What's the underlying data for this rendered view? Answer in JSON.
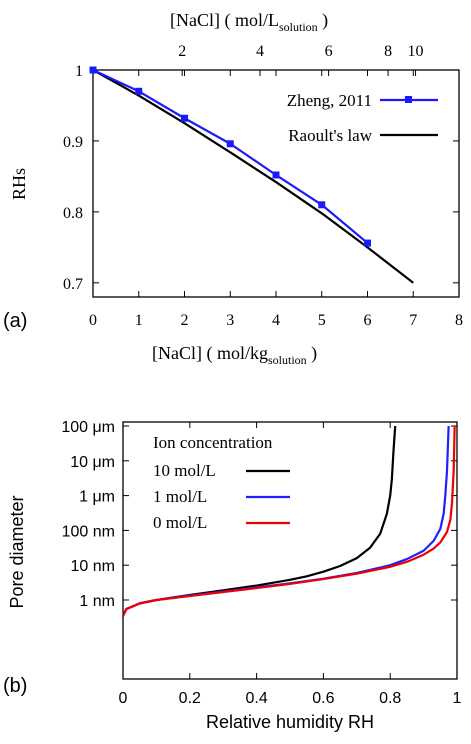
{
  "chart_data": [
    {
      "type": "line",
      "panel_label": "(a)",
      "xlabel": "[NaCl]   ( mol/kg",
      "xlabel_sub": "solution",
      "xlabel_end": " )",
      "x2label": "[NaCl]  ( mol/L",
      "x2label_sub": "solution",
      "x2label_end": " )",
      "ylabel": "RHs",
      "xlim": [
        0,
        8
      ],
      "ylim": [
        0.68,
        1.0
      ],
      "xticks": [
        "0",
        "1",
        "2",
        "3",
        "4",
        "5",
        "6",
        "7",
        "8"
      ],
      "yticks": [
        "0.7",
        "0.8",
        "0.9",
        "1"
      ],
      "x2ticks": [
        {
          "label": "2",
          "x": 1.95
        },
        {
          "label": "4",
          "x": 3.65
        },
        {
          "label": "6",
          "x": 5.15
        },
        {
          "label": "8",
          "x": 6.45
        },
        {
          "label": "10",
          "x": 7.05
        }
      ],
      "legend_position": "top-right",
      "series": [
        {
          "name": "Zheng, 2011",
          "color": "#1a1aff",
          "marker": "square",
          "x": [
            0,
            1,
            2,
            3,
            4,
            5,
            6
          ],
          "y": [
            1.0,
            0.97,
            0.932,
            0.896,
            0.852,
            0.81,
            0.756
          ]
        },
        {
          "name": "Raoult's law",
          "color": "#000000",
          "marker": "none",
          "x": [
            0,
            1,
            2,
            3,
            4,
            5,
            6,
            7
          ],
          "y": [
            1.0,
            0.964,
            0.925,
            0.884,
            0.842,
            0.798,
            0.75,
            0.7
          ]
        }
      ]
    },
    {
      "type": "line",
      "panel_label": "(b)",
      "xlabel": "Relative humidity RH",
      "ylabel": "Pore diameter",
      "xlim": [
        0,
        1
      ],
      "ylog": true,
      "ylim": [
        0.3,
        100000
      ],
      "xticks": [
        "0",
        "0.2",
        "0.4",
        "0.6",
        "0.8",
        "1"
      ],
      "yticks": [
        {
          "label": "1 nm",
          "v": 1
        },
        {
          "label": "10 nm",
          "v": 10
        },
        {
          "label": "100 nm",
          "v": 100
        },
        {
          "label": "1 μm",
          "v": 1000
        },
        {
          "label": "10 μm",
          "v": 10000
        },
        {
          "label": "100 μm",
          "v": 100000
        }
      ],
      "legend_title": "Ion concentration",
      "legend_position": "top-left",
      "series": [
        {
          "name": "10 mol/L",
          "color": "#000000",
          "x": [
            0.0,
            0.01,
            0.05,
            0.1,
            0.2,
            0.3,
            0.4,
            0.5,
            0.55,
            0.6,
            0.65,
            0.7,
            0.74,
            0.77,
            0.79,
            0.8,
            0.805,
            0.81,
            0.815
          ],
          "y": [
            0.35,
            0.55,
            0.8,
            1.0,
            1.4,
            1.9,
            2.6,
            3.8,
            4.8,
            6.5,
            9.5,
            16,
            32,
            80,
            300,
            1000,
            3000,
            20000,
            100000
          ]
        },
        {
          "name": "1 mol/L",
          "color": "#1f1fff",
          "x": [
            0.0,
            0.01,
            0.05,
            0.1,
            0.2,
            0.3,
            0.4,
            0.5,
            0.6,
            0.7,
            0.8,
            0.85,
            0.9,
            0.93,
            0.95,
            0.96,
            0.965,
            0.97,
            0.975
          ],
          "y": [
            0.35,
            0.55,
            0.8,
            1.0,
            1.35,
            1.75,
            2.3,
            3.0,
            4.1,
            6.0,
            10,
            15,
            26,
            50,
            110,
            300,
            1000,
            5000,
            100000
          ]
        },
        {
          "name": "0 mol/L",
          "color": "#ee0000",
          "x": [
            0.0,
            0.01,
            0.05,
            0.1,
            0.2,
            0.3,
            0.4,
            0.5,
            0.6,
            0.7,
            0.8,
            0.85,
            0.9,
            0.93,
            0.95,
            0.97,
            0.98,
            0.985,
            0.99,
            0.993
          ],
          "y": [
            0.35,
            0.55,
            0.8,
            1.0,
            1.3,
            1.7,
            2.2,
            2.9,
            4.0,
            5.7,
            9.0,
            12.5,
            20,
            30,
            45,
            90,
            200,
            600,
            5000,
            100000
          ]
        }
      ]
    }
  ]
}
